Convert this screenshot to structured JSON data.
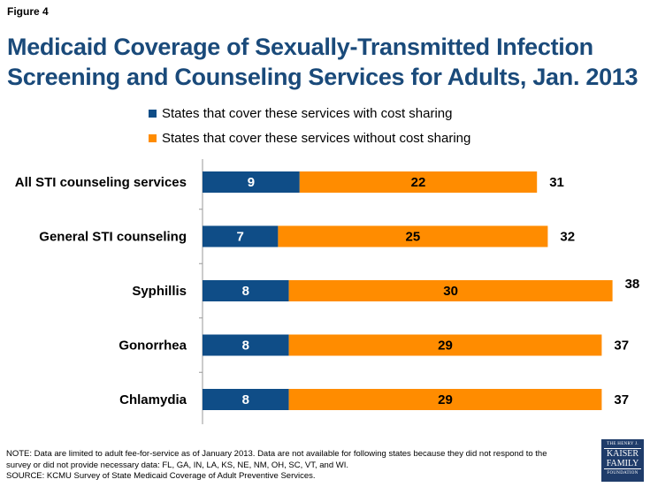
{
  "figure_label": "Figure 4",
  "title_line1": "Medicaid Coverage of Sexually-Transmitted Infection",
  "title_line2": "Screening and Counseling Services for Adults, Jan. 2013",
  "colors": {
    "title": "#1a4a7a",
    "with_cost": "#0f4d87",
    "without_cost": "#ff8c00"
  },
  "chart_data": {
    "type": "bar",
    "orientation": "horizontal",
    "stacked": true,
    "categories": [
      "All STI counseling services",
      "General STI counseling",
      "Syphillis",
      "Gonorrhea",
      "Chlamydia"
    ],
    "series": [
      {
        "name": "States that cover these services with cost sharing",
        "values": [
          9,
          7,
          8,
          8,
          8
        ]
      },
      {
        "name": "States that cover these services without cost sharing",
        "values": [
          22,
          25,
          30,
          29,
          29
        ]
      }
    ],
    "totals": [
      31,
      32,
      38,
      37,
      37
    ],
    "xlim": [
      0,
      38
    ],
    "legend_position": "top"
  },
  "note_line1": "NOTE: Data are limited to adult fee-for-service as of January 2013. Data are not available for following states because they did not respond to the",
  "note_line2": "survey or did not provide necessary data: FL, GA, IN, LA, KS, NE, NM, OH, SC, VT, and WI.",
  "source": "SOURCE:  KCMU Survey of State Medicaid Coverage of Adult Preventive Services.",
  "logo": {
    "line1": "THE HENRY J.",
    "line2": "KAISER",
    "line3": "FAMILY",
    "line4": "FOUNDATION"
  }
}
